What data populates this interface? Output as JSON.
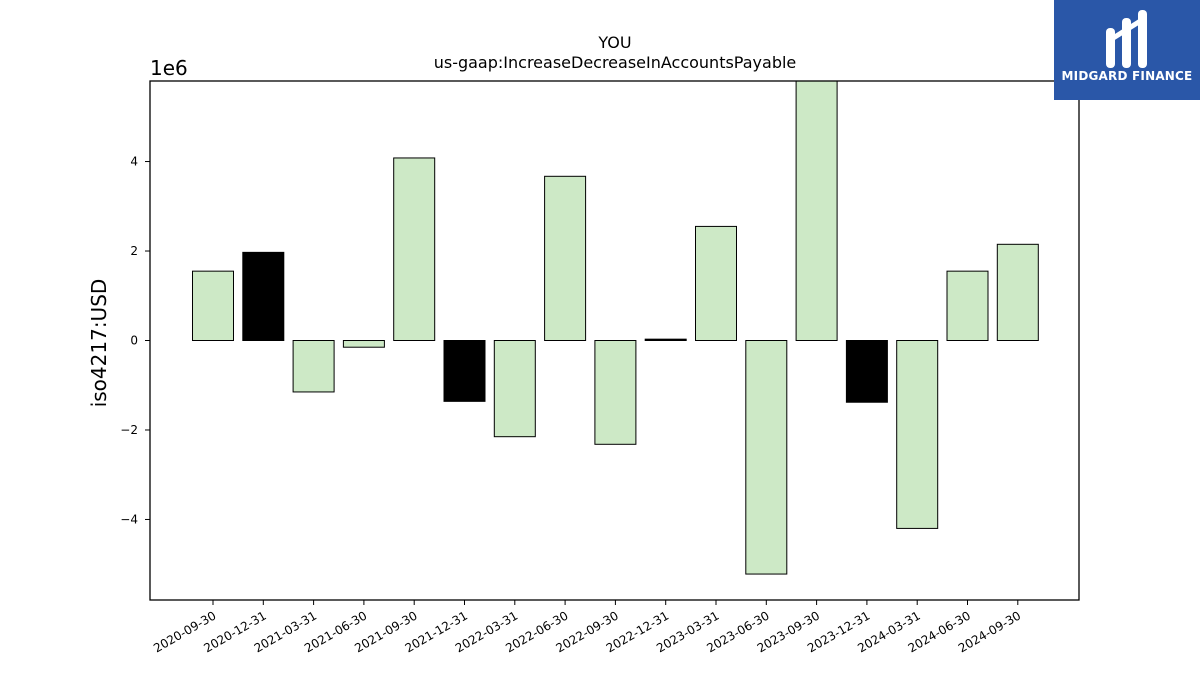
{
  "logo": {
    "text": "MIDGARD FINANCE",
    "icon": "midgard-logo-icon",
    "background": "#2a57a8"
  },
  "colors": {
    "positive_bar": "#cde9c6",
    "highlight_bar": "#000000",
    "bar_edge": "#000000"
  },
  "chart_data": {
    "type": "bar",
    "title": "YOU",
    "subtitle": "us-gaap:IncreaseDecreaseInAccountsPayable",
    "ylabel": "iso4217:USD",
    "xlabel": "",
    "y_scale_label": "1e6",
    "y_ticks": [
      -4,
      -2,
      0,
      2,
      4
    ],
    "y_tick_labels": [
      "−4",
      "−2",
      "0",
      "2",
      "4"
    ],
    "ylim": [
      -5.8,
      5.8
    ],
    "grid": false,
    "categories": [
      "2020-09-30",
      "2020-12-31",
      "2021-03-31",
      "2021-06-30",
      "2021-09-30",
      "2021-12-31",
      "2022-03-31",
      "2022-06-30",
      "2022-09-30",
      "2022-12-31",
      "2023-03-31",
      "2023-06-30",
      "2023-09-30",
      "2023-12-31",
      "2024-03-31",
      "2024-06-30",
      "2024-09-30"
    ],
    "values": [
      1.55,
      1.97,
      -1.15,
      -0.15,
      4.08,
      -1.36,
      -2.15,
      3.67,
      -2.32,
      0.03,
      2.55,
      -5.22,
      5.8,
      -1.38,
      -4.2,
      1.55,
      2.15
    ],
    "highlighted": [
      false,
      true,
      false,
      false,
      false,
      true,
      false,
      false,
      false,
      true,
      false,
      false,
      false,
      true,
      false,
      false,
      false
    ]
  }
}
